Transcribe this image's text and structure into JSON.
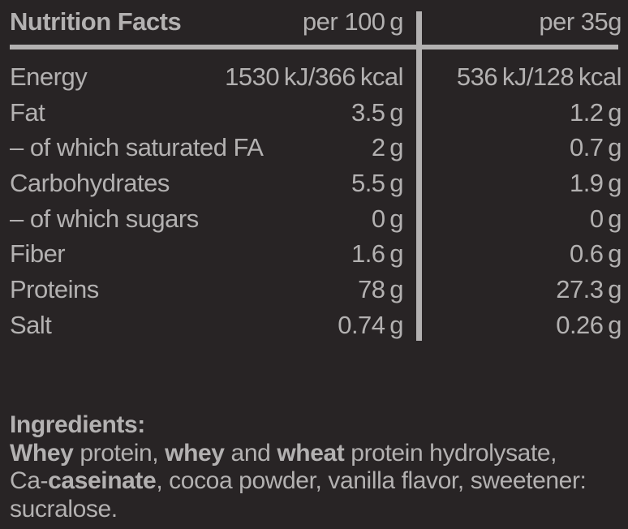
{
  "colors": {
    "background": "#282425",
    "text": "#b3b1b1",
    "rule": "#b3b1b1"
  },
  "header": {
    "title": "Nutrition Facts",
    "col_per100": "per 100 g",
    "col_per35": "per 35g"
  },
  "table": {
    "rows": [
      {
        "label": "Energy",
        "per100": "1530 kJ/366 kcal",
        "per35": "536 kJ/128 kcal"
      },
      {
        "label": "Fat",
        "per100": "3.5 g",
        "per35": "1.2 g"
      },
      {
        "label": "– of which saturated FA",
        "per100": "2 g",
        "per35": "0.7 g"
      },
      {
        "label": "Carbohydrates",
        "per100": "5.5 g",
        "per35": "1.9 g"
      },
      {
        "label": "– of which sugars",
        "per100": "0 g",
        "per35": "0 g"
      },
      {
        "label": "Fiber",
        "per100": "1.6 g",
        "per35": "0.6 g"
      },
      {
        "label": "Proteins",
        "per100": "78 g",
        "per35": "27.3 g"
      },
      {
        "label": "Salt",
        "per100": "0.74 g",
        "per35": "0.26 g"
      }
    ]
  },
  "ingredients": {
    "heading": "Ingredients:",
    "line1": [
      "Whey",
      " protein, ",
      "whey",
      " and ",
      "wheat",
      " protein hydrolysate,"
    ],
    "line2": [
      "Ca-",
      "caseinate",
      ", cocoa powder, vanilla flavor, sweetener:"
    ],
    "line3": [
      "sucralose."
    ]
  }
}
